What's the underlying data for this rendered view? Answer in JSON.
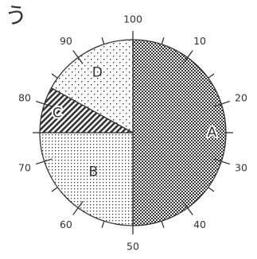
{
  "title": "う",
  "chart_data": {
    "type": "pie",
    "title": "う",
    "total": 100,
    "slices": [
      {
        "label": "A",
        "value": 50,
        "pattern": "checker"
      },
      {
        "label": "B",
        "value": 25,
        "pattern": "dots-dense"
      },
      {
        "label": "C",
        "value": 8,
        "pattern": "stripes"
      },
      {
        "label": "D",
        "value": 17,
        "pattern": "dots-sparse"
      }
    ],
    "scale_ticks": [
      0,
      10,
      20,
      30,
      40,
      50,
      60,
      70,
      80,
      90
    ],
    "scale_tick_labels": [
      "100",
      "10",
      "20",
      "30",
      "40",
      "50",
      "60",
      "70",
      "80",
      "90"
    ],
    "minor_ticks_every": 5,
    "start_angle": "top",
    "direction": "clockwise"
  }
}
